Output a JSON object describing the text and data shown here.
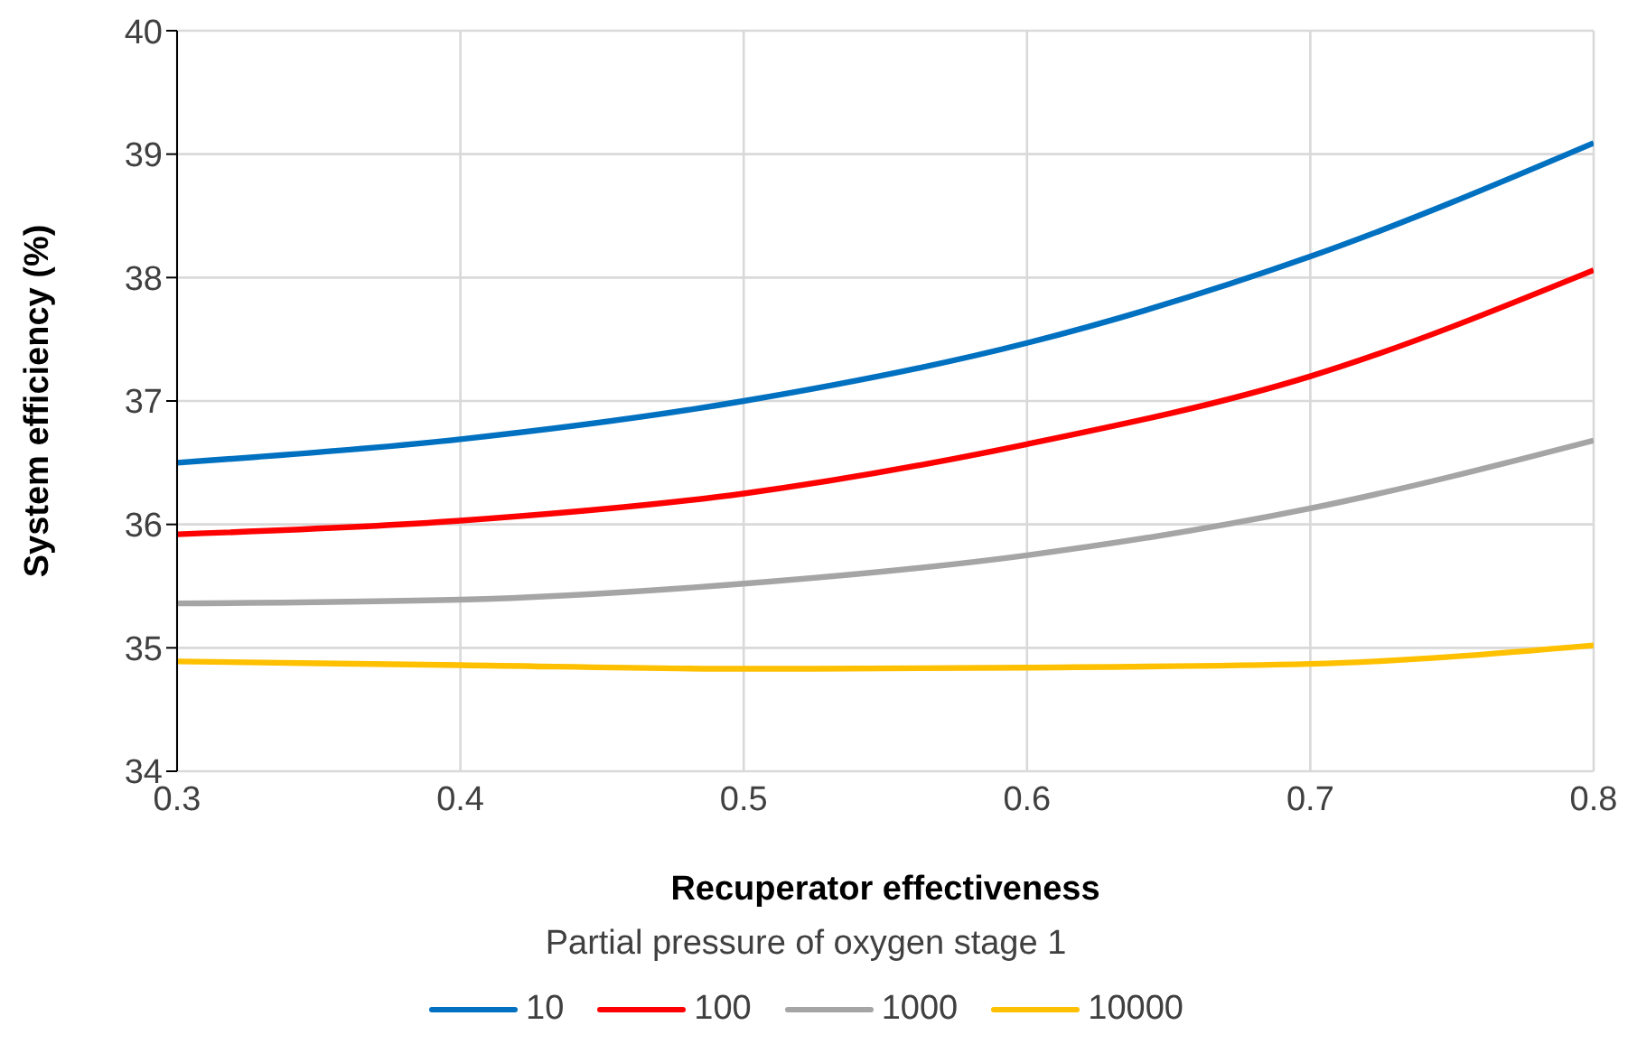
{
  "chart_data": {
    "type": "line",
    "xlabel": "Recuperator effectiveness",
    "ylabel": "System efficiency (%)",
    "legend_title": "Partial pressure of oxygen stage 1",
    "x": [
      0.3,
      0.4,
      0.5,
      0.6,
      0.7,
      0.8
    ],
    "xlim": [
      0.3,
      0.8
    ],
    "xticks": [
      0.3,
      0.4,
      0.5,
      0.6,
      0.7,
      0.8
    ],
    "ylim": [
      34,
      40
    ],
    "yticks": [
      34,
      35,
      36,
      37,
      38,
      39,
      40
    ],
    "grid": true,
    "legend": "bottom",
    "marker": "none",
    "line_style": "solid",
    "series": [
      {
        "name": "10",
        "color": "#0070c0",
        "values": [
          36.5,
          36.69,
          37.0,
          37.47,
          38.17,
          39.09
        ]
      },
      {
        "name": "100",
        "color": "#ff0000",
        "values": [
          35.92,
          36.03,
          36.25,
          36.65,
          37.2,
          38.06
        ]
      },
      {
        "name": "1000",
        "color": "#a5a5a5",
        "values": [
          35.36,
          35.39,
          35.52,
          35.75,
          36.13,
          36.68
        ]
      },
      {
        "name": "10000",
        "color": "#ffc000",
        "values": [
          34.89,
          34.86,
          34.83,
          34.84,
          34.87,
          35.02
        ]
      }
    ]
  }
}
